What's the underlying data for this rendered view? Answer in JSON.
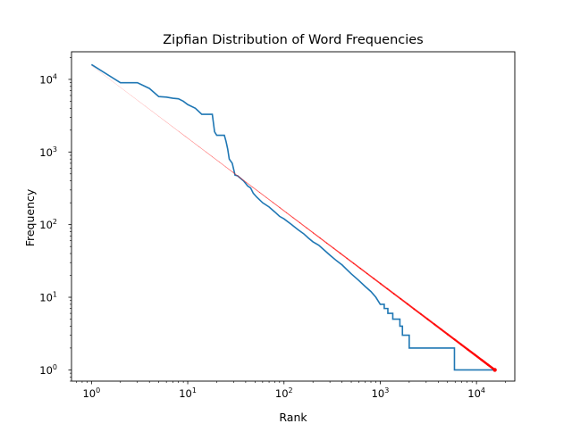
{
  "chart_data": {
    "type": "line",
    "title": "Zipfian Distribution of Word Frequencies",
    "xlabel": "Rank",
    "ylabel": "Frequency",
    "xscale": "log",
    "yscale": "log",
    "xlim": [
      0.62,
      25000
    ],
    "ylim": [
      0.7,
      24000
    ],
    "grid": false,
    "x_ticks": [
      {
        "value": 1,
        "base": "10",
        "exp": "0"
      },
      {
        "value": 10,
        "base": "10",
        "exp": "1"
      },
      {
        "value": 100,
        "base": "10",
        "exp": "2"
      },
      {
        "value": 1000,
        "base": "10",
        "exp": "3"
      },
      {
        "value": 10000,
        "base": "10",
        "exp": "4"
      }
    ],
    "y_ticks": [
      {
        "value": 1,
        "base": "10",
        "exp": "0"
      },
      {
        "value": 10,
        "base": "10",
        "exp": "1"
      },
      {
        "value": 100,
        "base": "10",
        "exp": "2"
      },
      {
        "value": 1000,
        "base": "10",
        "exp": "3"
      },
      {
        "value": 10000,
        "base": "10",
        "exp": "4"
      }
    ],
    "series": [
      {
        "style": "step",
        "color": "#1f77b4",
        "points": [
          [
            1,
            16000
          ],
          [
            2,
            9000
          ],
          [
            3,
            9000
          ],
          [
            4,
            7500
          ],
          [
            5,
            5800
          ],
          [
            6,
            5700
          ],
          [
            7,
            5500
          ],
          [
            8,
            5400
          ],
          [
            9,
            5000
          ],
          [
            10,
            4500
          ],
          [
            12,
            4000
          ],
          [
            14,
            3300
          ],
          [
            18,
            3300
          ],
          [
            19,
            1900
          ],
          [
            20,
            1700
          ],
          [
            24,
            1700
          ],
          [
            25,
            1400
          ],
          [
            26,
            1100
          ],
          [
            27,
            800
          ],
          [
            29,
            700
          ],
          [
            31,
            480
          ],
          [
            33,
            470
          ],
          [
            38,
            400
          ],
          [
            42,
            340
          ],
          [
            45,
            320
          ],
          [
            48,
            270
          ],
          [
            52,
            240
          ],
          [
            60,
            200
          ],
          [
            70,
            175
          ],
          [
            80,
            150
          ],
          [
            90,
            130
          ],
          [
            100,
            120
          ],
          [
            120,
            100
          ],
          [
            140,
            85
          ],
          [
            160,
            75
          ],
          [
            180,
            65
          ],
          [
            200,
            58
          ],
          [
            230,
            52
          ],
          [
            260,
            45
          ],
          [
            300,
            38
          ],
          [
            350,
            32
          ],
          [
            400,
            28
          ],
          [
            450,
            24
          ],
          [
            500,
            21
          ],
          [
            600,
            17
          ],
          [
            700,
            14
          ],
          [
            800,
            12
          ],
          [
            900,
            10
          ],
          [
            1000,
            8
          ],
          [
            1100,
            7
          ],
          [
            1200,
            6
          ],
          [
            1350,
            5
          ],
          [
            1600,
            4
          ],
          [
            1700,
            3
          ],
          [
            2000,
            2
          ],
          [
            5900,
            1
          ],
          [
            15500,
            1
          ]
        ]
      },
      {
        "style": "ideal",
        "color": "#ff0000",
        "points": [
          [
            1,
            15500
          ],
          [
            15500,
            1
          ]
        ]
      }
    ]
  }
}
